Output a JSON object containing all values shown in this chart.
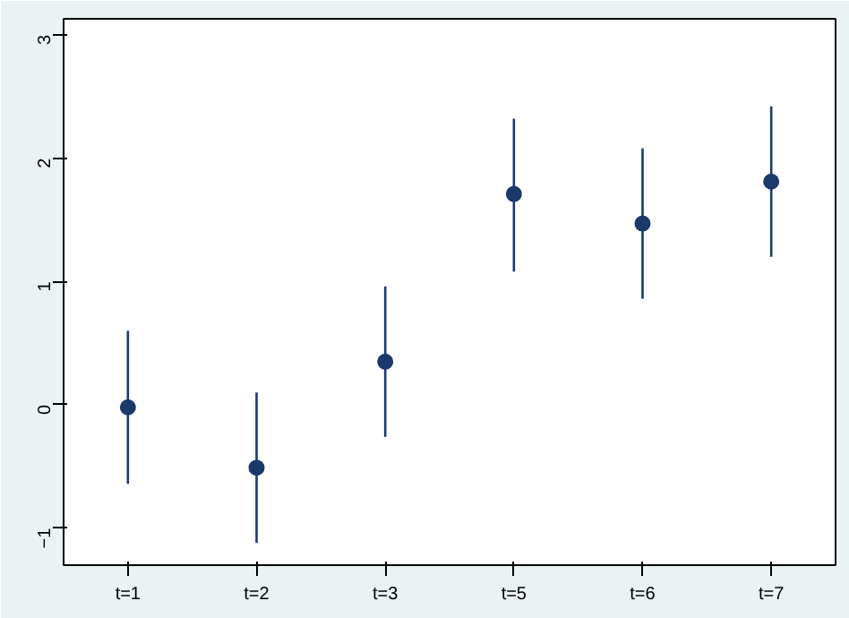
{
  "chart_data": {
    "type": "scatter",
    "categories": [
      "t=1",
      "t=2",
      "t=3",
      "t=5",
      "t=6",
      "t=7"
    ],
    "series": [
      {
        "color": "#1a3a6b",
        "values": [
          -0.02,
          -0.51,
          0.35,
          1.71,
          1.47,
          1.81
        ],
        "errors": [
          [
            -0.64,
            0.6
          ],
          [
            -1.12,
            0.1
          ],
          [
            -0.26,
            0.96
          ],
          [
            1.08,
            2.32
          ],
          [
            0.86,
            2.08
          ],
          [
            1.2,
            2.42
          ]
        ]
      }
    ],
    "ylim": [
      -1.3,
      3.13
    ],
    "yticks": [
      -1,
      0,
      1,
      2,
      3
    ],
    "grid": false,
    "marker": "circle"
  }
}
